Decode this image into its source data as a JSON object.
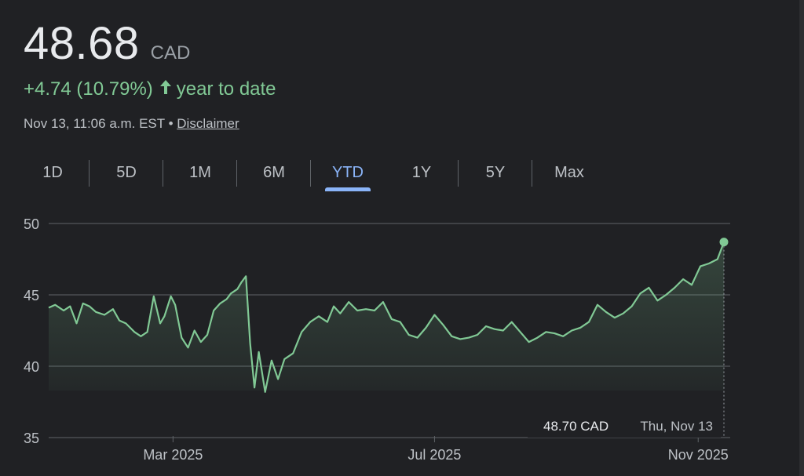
{
  "quote": {
    "price": "48.68",
    "currency": "CAD",
    "change": "+4.74 (10.79%)",
    "change_arrow": "arrow-up-icon",
    "period_label": "year to date",
    "timestamp": "Nov 13, 11:06 a.m. EST",
    "separator": "•",
    "disclaimer": "Disclaimer"
  },
  "tabs": [
    {
      "label": "1D",
      "active": false
    },
    {
      "label": "5D",
      "active": false
    },
    {
      "label": "1M",
      "active": false
    },
    {
      "label": "6M",
      "active": false
    },
    {
      "label": "YTD",
      "active": true
    },
    {
      "label": "1Y",
      "active": false
    },
    {
      "label": "5Y",
      "active": false
    },
    {
      "label": "Max",
      "active": false
    }
  ],
  "colors": {
    "background": "#202124",
    "line": "#81c995",
    "gain": "#81c995",
    "active_tab": "#8ab4f8",
    "grid": "#5f6368",
    "text_muted": "#bdc1c6"
  },
  "tooltip": {
    "value": "48.70 CAD",
    "date": "Thu, Nov 13"
  },
  "chart_data": {
    "type": "area",
    "title": "",
    "xlabel": "",
    "ylabel": "",
    "ylim": [
      35,
      50
    ],
    "yticks": [
      "35",
      "40",
      "45",
      "50"
    ],
    "xtick_labels": [
      {
        "label": "Mar 2025",
        "date": "2025-03-01"
      },
      {
        "label": "Jul 2025",
        "date": "2025-07-01"
      },
      {
        "label": "Nov 2025",
        "date": "2025-11-01"
      }
    ],
    "x_range": [
      "2025-01-02",
      "2025-11-13"
    ],
    "grid": true,
    "series": [
      {
        "x": [
          "2025-01-02",
          "2025-01-05",
          "2025-01-09",
          "2025-01-12",
          "2025-01-15",
          "2025-01-18",
          "2025-01-21",
          "2025-01-24",
          "2025-01-28",
          "2025-02-01",
          "2025-02-04",
          "2025-02-07",
          "2025-02-11",
          "2025-02-14",
          "2025-02-17",
          "2025-02-20",
          "2025-02-23",
          "2025-02-25",
          "2025-02-28",
          "2025-03-02",
          "2025-03-05",
          "2025-03-08",
          "2025-03-11",
          "2025-03-14",
          "2025-03-17",
          "2025-03-20",
          "2025-03-23",
          "2025-03-26",
          "2025-03-28",
          "2025-03-31",
          "2025-04-02",
          "2025-04-04",
          "2025-04-06",
          "2025-04-08",
          "2025-04-10",
          "2025-04-13",
          "2025-04-16",
          "2025-04-19",
          "2025-04-22",
          "2025-04-26",
          "2025-04-30",
          "2025-05-04",
          "2025-05-08",
          "2025-05-12",
          "2025-05-15",
          "2025-05-18",
          "2025-05-22",
          "2025-05-26",
          "2025-05-30",
          "2025-06-03",
          "2025-06-07",
          "2025-06-11",
          "2025-06-15",
          "2025-06-19",
          "2025-06-23",
          "2025-06-27",
          "2025-07-01",
          "2025-07-05",
          "2025-07-09",
          "2025-07-13",
          "2025-07-17",
          "2025-07-21",
          "2025-07-25",
          "2025-07-29",
          "2025-08-02",
          "2025-08-06",
          "2025-08-10",
          "2025-08-14",
          "2025-08-18",
          "2025-08-22",
          "2025-08-26",
          "2025-08-30",
          "2025-09-03",
          "2025-09-07",
          "2025-09-11",
          "2025-09-15",
          "2025-09-19",
          "2025-09-23",
          "2025-09-27",
          "2025-10-01",
          "2025-10-05",
          "2025-10-09",
          "2025-10-13",
          "2025-10-17",
          "2025-10-21",
          "2025-10-25",
          "2025-10-29",
          "2025-11-02",
          "2025-11-06",
          "2025-11-10",
          "2025-11-13"
        ],
        "y": [
          44.1,
          44.3,
          43.9,
          44.2,
          43.0,
          44.4,
          44.2,
          43.8,
          43.6,
          44.0,
          43.2,
          43.0,
          42.4,
          42.1,
          42.4,
          44.9,
          43.0,
          43.5,
          44.9,
          44.3,
          42.0,
          41.3,
          42.5,
          41.7,
          42.2,
          43.9,
          44.4,
          44.7,
          45.1,
          45.4,
          45.9,
          46.3,
          41.6,
          38.5,
          41.0,
          38.2,
          40.4,
          39.1,
          40.5,
          40.9,
          42.4,
          43.1,
          43.5,
          43.1,
          44.2,
          43.7,
          44.5,
          43.9,
          44.0,
          43.9,
          44.5,
          43.3,
          43.1,
          42.2,
          42.0,
          42.7,
          43.6,
          42.9,
          42.1,
          41.9,
          42.0,
          42.2,
          42.8,
          42.6,
          42.5,
          43.1,
          42.4,
          41.7,
          42.0,
          42.4,
          42.3,
          42.1,
          42.5,
          42.7,
          43.1,
          44.3,
          43.8,
          43.4,
          43.7,
          44.2,
          45.1,
          45.5,
          44.6,
          45.0,
          45.5,
          46.1,
          45.7,
          47.0,
          47.2,
          47.5,
          48.7
        ]
      }
    ]
  }
}
